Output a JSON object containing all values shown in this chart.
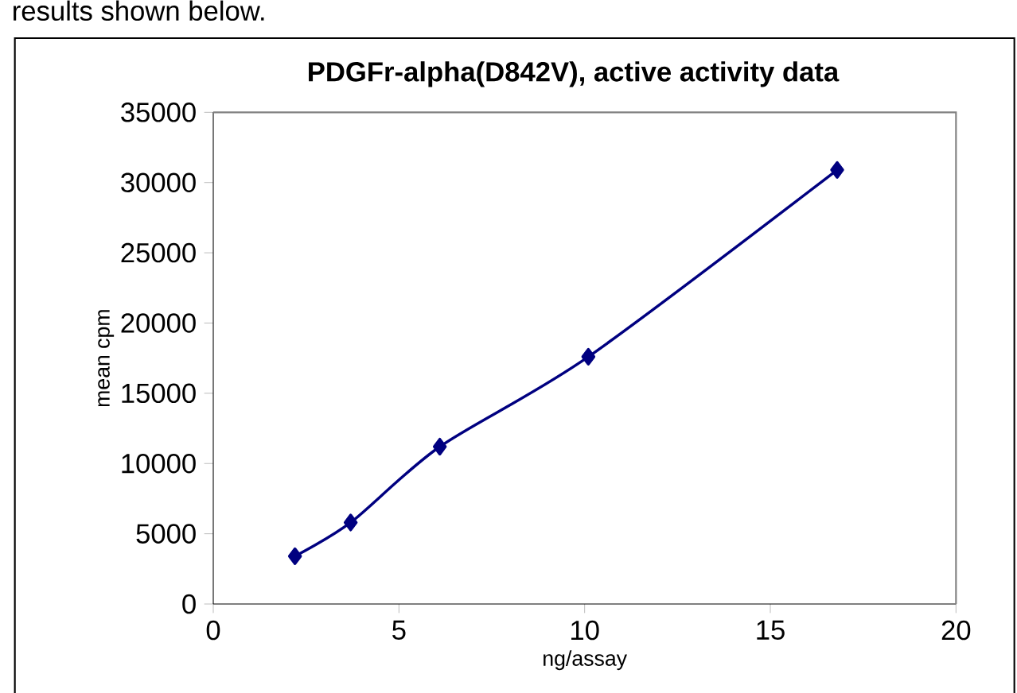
{
  "chart_data": {
    "type": "line",
    "title": "PDGFr-alpha(D842V), active activity data",
    "xlabel": "ng/assay",
    "ylabel": "mean cpm",
    "annotations": [
      "results shown below."
    ],
    "x": [
      2.2,
      3.7,
      6.1,
      10.1,
      16.8
    ],
    "series": [
      {
        "color": "#000080",
        "values": [
          3400,
          5800,
          11200,
          17600,
          30900
        ]
      }
    ],
    "xlim": [
      0,
      20
    ],
    "xticks": [
      0,
      5,
      10,
      15,
      20
    ],
    "ylim": [
      0,
      35000
    ],
    "yticks": [
      0,
      5000,
      10000,
      15000,
      20000,
      25000,
      30000,
      35000
    ],
    "grid": false,
    "marker": "diamond",
    "line_style": "solid"
  }
}
